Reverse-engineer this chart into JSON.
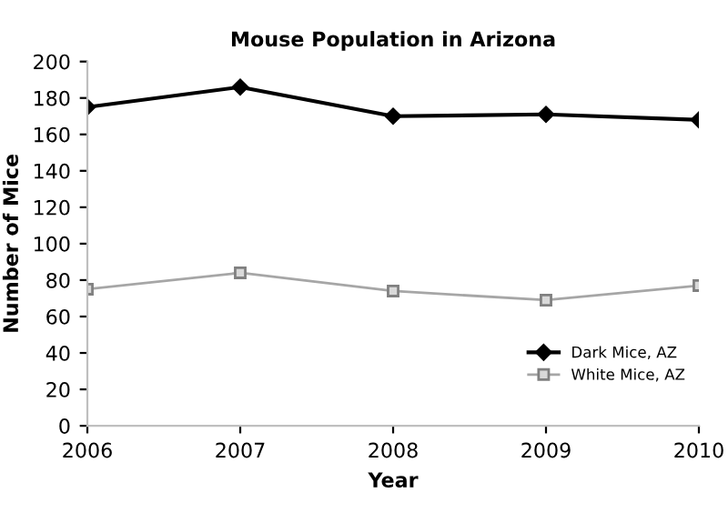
{
  "chart_data": {
    "type": "line",
    "title": "Mouse Population in Arizona",
    "xlabel": "Year",
    "ylabel": "Number of Mice",
    "x": [
      2006,
      2007,
      2008,
      2009,
      2010
    ],
    "series": [
      {
        "name": "Dark Mice, AZ",
        "color": "#000000",
        "values": [
          175,
          186,
          170,
          171,
          168
        ],
        "marker": "diamond"
      },
      {
        "name": "White Mice, AZ",
        "color": "#a6a6a6",
        "values": [
          75,
          84,
          74,
          69,
          77
        ],
        "marker": "square"
      }
    ],
    "xlim": [
      2006,
      2010
    ],
    "xticks": [
      2006,
      2007,
      2008,
      2009,
      2010
    ],
    "ylim": [
      0,
      200
    ],
    "yticks": [
      0,
      20,
      40,
      60,
      80,
      100,
      120,
      140,
      160,
      180,
      200
    ],
    "grid": false,
    "legend": "bottom right",
    "line_style": "solid"
  }
}
